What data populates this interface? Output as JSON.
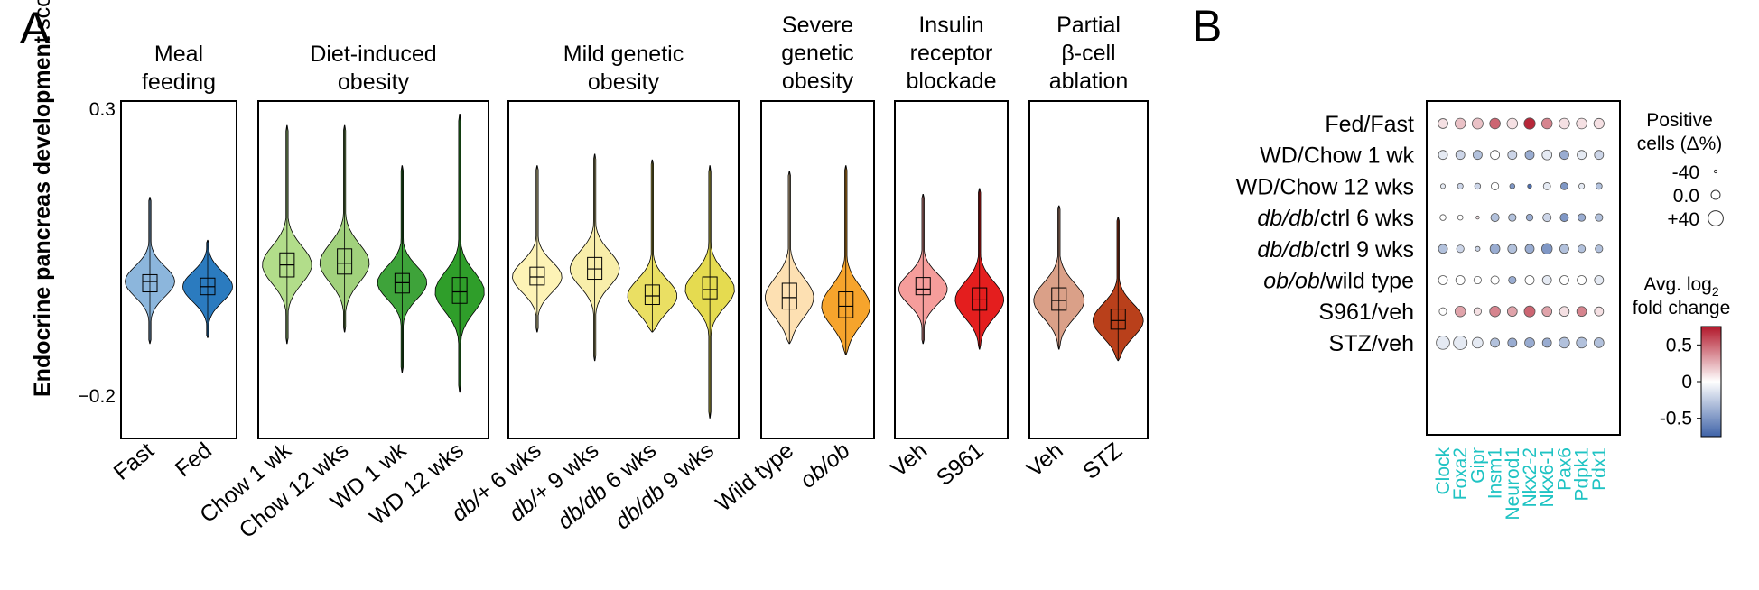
{
  "panel_a": {
    "label": "A",
    "ylabel_bold": "Endocrine pancreas development",
    "ylabel_rest": " score",
    "chart_data": {
      "type": "violin",
      "ylabel": "Endocrine pancreas development score",
      "ylim": [
        -0.2,
        0.3
      ],
      "yticks": [
        "0.3",
        "−0.2"
      ],
      "panels": [
        {
          "title": [
            "Meal",
            "feeding"
          ],
          "violins": [
            {
              "label": "Fast",
              "color": "#8cb6dc",
              "min": -0.11,
              "q1": -0.02,
              "median": -0.002,
              "q3": 0.01,
              "max": 0.145
            },
            {
              "label": "Fed",
              "color": "#2b7bbf",
              "min": -0.1,
              "q1": -0.025,
              "median": -0.011,
              "q3": 0.004,
              "max": 0.07
            }
          ]
        },
        {
          "title": [
            "Diet-induced",
            "obesity"
          ],
          "violins": [
            {
              "label": "Chow 1 wk",
              "color": "#b2dd8a",
              "min": -0.11,
              "q1": 0.006,
              "median": 0.027,
              "q3": 0.048,
              "max": 0.27
            },
            {
              "label": "Chow 12 wks",
              "color": "#a1d17c",
              "min": -0.09,
              "q1": 0.011,
              "median": 0.03,
              "q3": 0.055,
              "max": 0.27
            },
            {
              "label": "WD 1 wk",
              "color": "#3ea33a",
              "min": -0.16,
              "q1": -0.022,
              "median": -0.004,
              "q3": 0.012,
              "max": 0.2
            },
            {
              "label": "WD 12 wks",
              "color": "#2f9e2a",
              "min": -0.195,
              "q1": -0.04,
              "median": -0.02,
              "q3": 0.005,
              "max": 0.29
            }
          ]
        },
        {
          "title": [
            "Mild genetic",
            "obesity"
          ],
          "violins": [
            {
              "label": "db/+ 6 wks",
              "color": "#fdf3b6",
              "min": -0.09,
              "q1": -0.008,
              "median": 0.006,
              "q3": 0.023,
              "max": 0.2
            },
            {
              "label": "db/+ 9 wks",
              "color": "#f8eeaa",
              "min": -0.14,
              "q1": 0.002,
              "median": 0.02,
              "q3": 0.04,
              "max": 0.22
            },
            {
              "label": "db/db 6 wks",
              "color": "#eadf63",
              "min": -0.09,
              "q1": -0.042,
              "median": -0.027,
              "q3": -0.008,
              "max": 0.21
            },
            {
              "label": "db/db 9 wks",
              "color": "#e5db50",
              "min": -0.24,
              "q1": -0.032,
              "median": -0.016,
              "q3": 0.006,
              "max": 0.2
            }
          ]
        },
        {
          "title": [
            "Severe",
            "genetic",
            "obesity"
          ],
          "violins": [
            {
              "label": "Wild type",
              "color": "#fde0b2",
              "min": -0.11,
              "q1": -0.05,
              "median": -0.03,
              "q3": -0.005,
              "max": 0.19
            },
            {
              "label": "ob/ob",
              "color": "#f6a42c",
              "min": -0.13,
              "q1": -0.065,
              "median": -0.045,
              "q3": -0.02,
              "max": 0.2
            }
          ]
        },
        {
          "title": [
            "Insulin",
            "receptor",
            "blockade"
          ],
          "violins": [
            {
              "label": "Veh",
              "color": "#f59d9b",
              "min": -0.11,
              "q1": -0.025,
              "median": -0.015,
              "q3": 0.005,
              "max": 0.15
            },
            {
              "label": "S961",
              "color": "#e41e1e",
              "min": -0.12,
              "q1": -0.052,
              "median": -0.034,
              "q3": -0.013,
              "max": 0.16
            }
          ]
        },
        {
          "title": [
            "Partial",
            "β-cell",
            "ablation"
          ],
          "violins": [
            {
              "label": "Veh",
              "color": "#daa088",
              "min": -0.12,
              "q1": -0.052,
              "median": -0.035,
              "q3": -0.013,
              "max": 0.13
            },
            {
              "label": "STZ",
              "color": "#b9401b",
              "min": -0.14,
              "q1": -0.085,
              "median": -0.07,
              "q3": -0.05,
              "max": 0.11
            }
          ]
        }
      ]
    }
  },
  "panel_b": {
    "label": "B",
    "size_legend": {
      "title": [
        "Positive",
        "cells (Δ%)"
      ],
      "entries": [
        {
          "label": "-40",
          "value": -40
        },
        {
          "label": "0.0",
          "value": 0
        },
        {
          "label": "+40",
          "value": 40
        }
      ]
    },
    "color_legend": {
      "title_line1": "Avg. log",
      "title_sub": "2",
      "title_line2": "fold change",
      "ticks": [
        "0.5",
        "0",
        "-0.5"
      ],
      "colors": {
        "high": "#b2182b",
        "mid": "#ffffff",
        "low": "#3f63a8"
      }
    },
    "chart_data": {
      "type": "dot",
      "rows": [
        {
          "parts": [
            {
              "t": "Fed/Fast",
              "i": false
            }
          ]
        },
        {
          "parts": [
            {
              "t": "WD/Chow 1 wk",
              "i": false
            }
          ]
        },
        {
          "parts": [
            {
              "t": "WD/Chow 12 wks",
              "i": false
            }
          ]
        },
        {
          "parts": [
            {
              "t": "db/db",
              "i": true
            },
            {
              "t": "/ctrl 6 wks",
              "i": false
            }
          ]
        },
        {
          "parts": [
            {
              "t": "db/db",
              "i": true
            },
            {
              "t": "/ctrl 9 wks",
              "i": false
            }
          ]
        },
        {
          "parts": [
            {
              "t": "ob/ob",
              "i": true
            },
            {
              "t": "/wild type",
              "i": false
            }
          ]
        },
        {
          "parts": [
            {
              "t": "S961/veh",
              "i": false
            }
          ]
        },
        {
          "parts": [
            {
              "t": "STZ/veh",
              "i": false
            }
          ]
        }
      ],
      "genes": [
        "Clock",
        "Foxa2",
        "Gipr",
        "Insm1",
        "Neurod1",
        "Nkx2-2",
        "Nkx6-1",
        "Pax6",
        "Pdpk1",
        "Pdx1"
      ],
      "gene_color": "#1fc3c3",
      "size_delta": [
        [
          5,
          10,
          12,
          10,
          10,
          14,
          10,
          10,
          10,
          8
        ],
        [
          0,
          0,
          0,
          0,
          0,
          0,
          5,
          0,
          0,
          0
        ],
        [
          -28,
          -22,
          -20,
          -10,
          -25,
          -32,
          -12,
          -12,
          -22,
          -18
        ],
        [
          -20,
          -25,
          -38,
          -5,
          -10,
          -15,
          -5,
          -5,
          -10,
          -10
        ],
        [
          0,
          -10,
          -28,
          5,
          0,
          0,
          10,
          0,
          -10,
          -10
        ],
        [
          0,
          0,
          -10,
          -5,
          -10,
          0,
          0,
          0,
          0,
          0
        ],
        [
          -10,
          10,
          -10,
          10,
          5,
          12,
          5,
          5,
          5,
          0
        ],
        [
          28,
          30,
          10,
          0,
          0,
          5,
          0,
          10,
          10,
          5
        ]
      ],
      "log2fc": [
        [
          0.1,
          0.2,
          0.2,
          0.5,
          0.1,
          0.7,
          0.4,
          0.1,
          0.1,
          0.1
        ],
        [
          -0.1,
          -0.2,
          -0.3,
          0,
          -0.2,
          -0.4,
          -0.1,
          -0.4,
          -0.1,
          -0.2
        ],
        [
          -0.1,
          -0.2,
          -0.2,
          0,
          -0.5,
          -0.7,
          -0.1,
          -0.5,
          -0.1,
          -0.3
        ],
        [
          0,
          0,
          0.1,
          -0.3,
          -0.3,
          -0.4,
          -0.2,
          -0.5,
          -0.4,
          -0.3
        ],
        [
          -0.3,
          -0.2,
          -0.2,
          -0.4,
          -0.3,
          -0.4,
          -0.5,
          -0.3,
          -0.3,
          -0.3
        ],
        [
          0,
          0,
          0,
          0,
          -0.4,
          0,
          -0.1,
          0,
          0,
          -0.1
        ],
        [
          0,
          0.3,
          0.1,
          0.4,
          0.3,
          0.5,
          0.3,
          0.1,
          0.4,
          0.1
        ],
        [
          -0.1,
          -0.1,
          -0.1,
          -0.3,
          -0.4,
          -0.4,
          -0.4,
          -0.3,
          -0.3,
          -0.3
        ]
      ],
      "clim": [
        -0.75,
        0.75
      ]
    }
  }
}
